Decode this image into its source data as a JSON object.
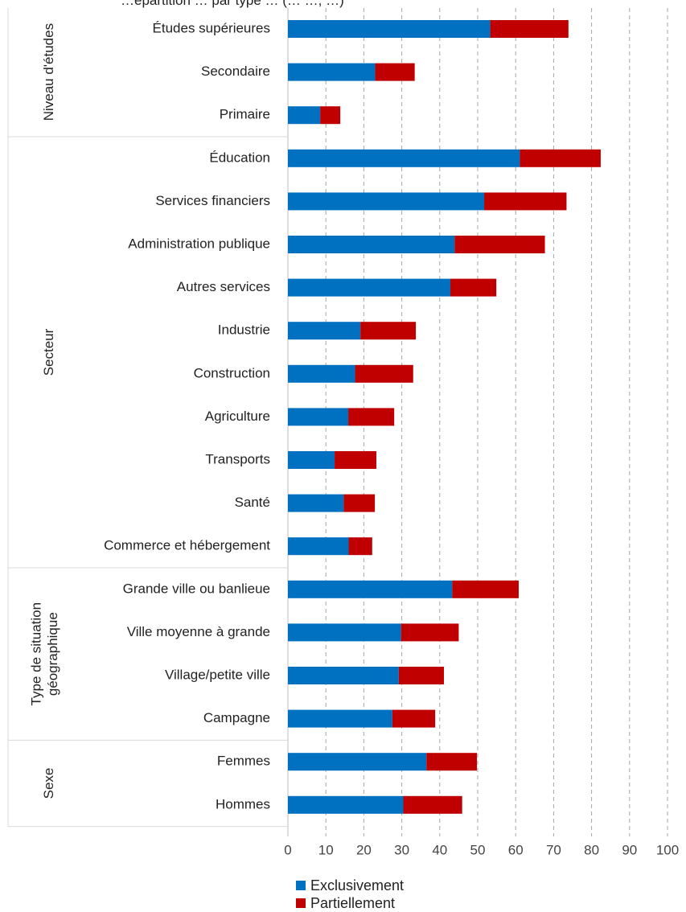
{
  "chart_data": {
    "type": "bar",
    "orientation": "horizontal",
    "stacked": true,
    "title": "…épartition … par type … (… …, …)",
    "xlim": [
      0,
      100
    ],
    "xticks": [
      0,
      10,
      20,
      30,
      40,
      50,
      60,
      70,
      80,
      90,
      100
    ],
    "grid": "vertical dashed",
    "legend_position": "bottom",
    "colors": {
      "Exclusivement": "#0070C0",
      "Partiellement": "#C00000"
    },
    "groups": [
      {
        "label": "Niveau d'études",
        "categories": [
          "Études supérieures",
          "Secondaire",
          "Primaire"
        ]
      },
      {
        "label": "Secteur",
        "categories": [
          "Éducation",
          "Services financiers",
          "Administration publique",
          "Autres services",
          "Industrie",
          "Construction",
          "Agriculture",
          "Transports",
          "Santé",
          "Commerce et hébergement"
        ]
      },
      {
        "label": "Type de situation géographique",
        "categories": [
          "Grande ville ou banlieue",
          "Ville moyenne à grande",
          "Village/petite ville",
          "Campagne"
        ]
      },
      {
        "label": "Sexe",
        "categories": [
          "Femmes",
          "Hommes"
        ]
      }
    ],
    "categories": [
      "Études supérieures",
      "Secondaire",
      "Primaire",
      "Éducation",
      "Services financiers",
      "Administration publique",
      "Autres services",
      "Industrie",
      "Construction",
      "Agriculture",
      "Transports",
      "Santé",
      "Commerce et hébergement",
      "Grande ville ou banlieue",
      "Ville moyenne à grande",
      "Village/petite ville",
      "Campagne",
      "Femmes",
      "Hommes"
    ],
    "series": [
      {
        "name": "Exclusivement",
        "values": [
          53.3,
          23.0,
          8.5,
          61.1,
          51.7,
          43.9,
          42.8,
          19.1,
          17.7,
          15.9,
          12.3,
          14.7,
          16.0,
          43.3,
          29.8,
          29.2,
          27.5,
          36.5,
          30.4
        ]
      },
      {
        "name": "Partiellement",
        "values": [
          20.6,
          10.4,
          5.3,
          21.3,
          21.7,
          23.8,
          12.1,
          14.6,
          15.3,
          12.1,
          11.0,
          8.2,
          6.2,
          17.5,
          15.2,
          11.9,
          11.3,
          13.3,
          15.5
        ]
      }
    ]
  }
}
